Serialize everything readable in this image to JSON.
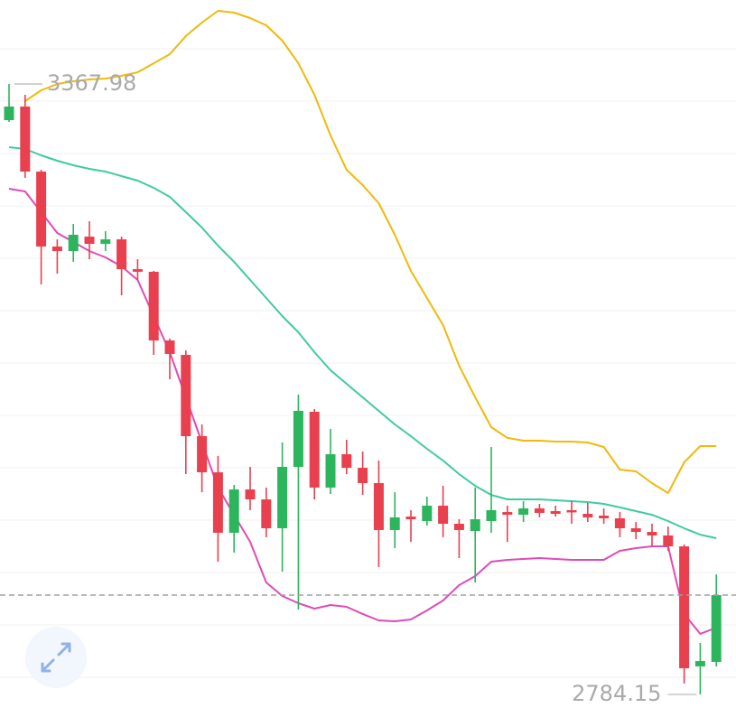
{
  "chart_data": {
    "type": "candlestick",
    "ylim": [
      2762.6,
      3448.3
    ],
    "up_color": "#2db55d",
    "down_color": "#e8404f",
    "open": [
      3333.4,
      3346.4,
      3284.2,
      3212.5,
      3208.2,
      3222.0,
      3215.1,
      3219.4,
      3190.9,
      3188.4,
      3122.7,
      3108.9,
      3031.2,
      2996.6,
      2938.8,
      2980.2,
      2970.7,
      2943.1,
      3001.8,
      3054.5,
      2982.0,
      3013.9,
      3000.9,
      2986.3,
      2941.4,
      2954.3,
      2950.0,
      2964.7,
      2947.4,
      2940.5,
      2950.0,
      2958.6,
      2956.0,
      2962.1,
      2959.5,
      2960.4,
      2956.9,
      2955.2,
      2952.6,
      2943.1,
      2939.6,
      2936.2,
      2925.8,
      2811.0,
      2815.3
    ],
    "high": [
      3367.98,
      3357.6,
      3285.9,
      3219.4,
      3234.1,
      3236.7,
      3227.2,
      3222.0,
      3200.4,
      3189.2,
      3124.4,
      3113.2,
      3042.4,
      3012.2,
      2984.5,
      3001.8,
      2982.0,
      3025.1,
      3070.9,
      3057.1,
      3038.1,
      3027.7,
      3016.5,
      3007.9,
      2977.6,
      2960.4,
      2973.3,
      2983.7,
      2951.7,
      2982.0,
      3020.8,
      2964.7,
      2969.0,
      2966.4,
      2964.7,
      2969.0,
      2967.3,
      2962.1,
      2958.6,
      2949.1,
      2947.4,
      2944.8,
      2927.5,
      2833.4,
      2899.0
    ],
    "low": [
      3331.7,
      3278.2,
      3176.3,
      3186.6,
      3197.9,
      3200.4,
      3208.2,
      3165.9,
      3180.6,
      3108.9,
      3085.6,
      2994.9,
      2977.6,
      2911.1,
      2919.8,
      2960.4,
      2934.5,
      2901.6,
      2865.4,
      2970.7,
      2975.9,
      2994.9,
      2975.0,
      2906.0,
      2924.1,
      2930.1,
      2945.7,
      2934.5,
      2914.6,
      2891.3,
      2938.8,
      2930.1,
      2949.1,
      2953.5,
      2954.3,
      2947.4,
      2949.1,
      2947.4,
      2934.5,
      2932.7,
      2925.8,
      2921.5,
      2794.6,
      2784.15,
      2811.0
    ],
    "close": [
      3346.4,
      3284.2,
      3212.5,
      3208.2,
      3223.8,
      3215.1,
      3219.4,
      3190.9,
      3188.4,
      3122.7,
      3109.8,
      3031.2,
      2996.6,
      2938.8,
      2980.2,
      2970.7,
      2943.1,
      3001.8,
      3055.4,
      2982.0,
      3013.9,
      3000.9,
      2986.3,
      2941.4,
      2953.5,
      2951.7,
      2964.7,
      2947.4,
      2941.4,
      2951.7,
      2960.4,
      2956.0,
      2962.1,
      2957.8,
      2956.9,
      2959.5,
      2953.5,
      2952.6,
      2943.1,
      2939.6,
      2936.2,
      2925.8,
      2809.2,
      2816.1,
      2879.2
    ],
    "series": [
      {
        "color": "#f0b90b",
        "values": [
          null,
          3351.6,
          3361.9,
          3368.0,
          3370.6,
          3372.3,
          3373.2,
          3375.8,
          3379.2,
          3387.8,
          3396.5,
          3413.8,
          3426.7,
          3437.9,
          3436.2,
          3431.0,
          3424.1,
          3409.4,
          3387.8,
          3357.6,
          3318.8,
          3285.9,
          3271.3,
          3254.0,
          3223.8,
          3189.2,
          3163.3,
          3137.4,
          3098.5,
          3068.3,
          3039.8,
          3029.5,
          3026.9,
          3026.9,
          3026.0,
          3026.0,
          3025.1,
          3020.8,
          2999.2,
          2997.5,
          2986.3,
          2976.8,
          3006.1,
          3021.7,
          3021.7
        ]
      },
      {
        "color": "#3ecba0",
        "values": [
          3307.5,
          3305.8,
          3299.8,
          3294.6,
          3290.3,
          3286.8,
          3284.2,
          3279.9,
          3275.6,
          3268.7,
          3260.0,
          3245.4,
          3230.7,
          3213.4,
          3197.9,
          3180.6,
          3163.3,
          3146.0,
          3130.5,
          3111.5,
          3094.2,
          3081.3,
          3068.3,
          3055.4,
          3042.4,
          3031.2,
          3019.1,
          3007.9,
          2994.9,
          2983.7,
          2975.0,
          2970.7,
          2970.7,
          2970.7,
          2969.9,
          2969.0,
          2968.1,
          2966.4,
          2963.0,
          2959.5,
          2956.0,
          2950.0,
          2943.1,
          2937.0,
          2933.6
        ]
      },
      {
        "color": "#e04ab8",
        "values": [
          3267.8,
          3265.2,
          3245.4,
          3225.5,
          3216.9,
          3208.2,
          3202.2,
          3193.5,
          3180.6,
          3146.0,
          3111.5,
          3068.3,
          3025.1,
          2982.0,
          2956.0,
          2930.1,
          2891.3,
          2878.3,
          2871.4,
          2866.2,
          2869.7,
          2868.0,
          2861.1,
          2855.0,
          2854.1,
          2855.9,
          2864.5,
          2874.0,
          2888.7,
          2897.3,
          2911.1,
          2912.9,
          2913.7,
          2914.6,
          2913.7,
          2912.9,
          2912.9,
          2912.9,
          2921.5,
          2924.1,
          2925.8,
          2925.8,
          2861.1,
          2842.1,
          2848.1
        ]
      }
    ]
  }
}
